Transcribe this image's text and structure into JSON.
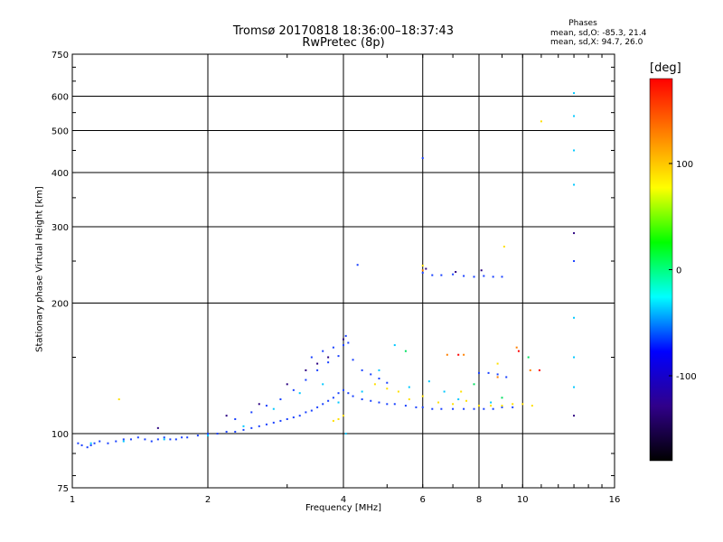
{
  "chart_data": {
    "type": "scatter",
    "title": "Tromsø 20170818 18:36:00–18:37:43",
    "subtitle": "RwPretec (8p)",
    "xlabel": "Frequency [MHz]",
    "ylabel": "Stationary phase Virtual Height [km]",
    "x_scale": "log",
    "y_scale": "log",
    "xlim": [
      1,
      16
    ],
    "ylim": [
      75,
      750
    ],
    "x_ticks": [
      1,
      2,
      4,
      6,
      8,
      10,
      16
    ],
    "y_ticks": [
      75,
      100,
      200,
      300,
      400,
      500,
      600,
      750
    ],
    "grid": true,
    "phase_stats": {
      "title": "Phases",
      "o_line": "mean, sd,O: -85.3, 21.4",
      "x_line": "mean, sd,X:  94.7, 26.0"
    },
    "colorbar": {
      "label": "[deg]",
      "range": [
        -180,
        180
      ],
      "ticks": [
        100,
        0,
        -100
      ],
      "colors": [
        "#ff0000",
        "#ff8000",
        "#ffff00",
        "#00ff00",
        "#00ffff",
        "#0000ff",
        "#30008a",
        "#000000"
      ]
    },
    "series": [
      {
        "color": "#1840ff",
        "points": [
          [
            1.03,
            95
          ],
          [
            1.05,
            94
          ],
          [
            1.08,
            93
          ],
          [
            1.1,
            94
          ],
          [
            1.12,
            95
          ],
          [
            1.15,
            96
          ],
          [
            1.2,
            95
          ],
          [
            1.25,
            96
          ],
          [
            1.3,
            97
          ],
          [
            1.35,
            97
          ],
          [
            1.4,
            98
          ],
          [
            1.45,
            97
          ],
          [
            1.5,
            96
          ],
          [
            1.55,
            97
          ],
          [
            1.6,
            98
          ],
          [
            1.65,
            97
          ],
          [
            1.7,
            97
          ],
          [
            1.75,
            98
          ],
          [
            1.8,
            98
          ],
          [
            1.9,
            99
          ],
          [
            2.0,
            100
          ],
          [
            2.1,
            100
          ],
          [
            2.2,
            101
          ],
          [
            2.3,
            101
          ],
          [
            2.4,
            102
          ],
          [
            2.5,
            103
          ],
          [
            2.6,
            104
          ],
          [
            2.7,
            105
          ],
          [
            2.8,
            106
          ],
          [
            2.9,
            107
          ],
          [
            3.0,
            108
          ],
          [
            3.1,
            109
          ],
          [
            3.2,
            110
          ],
          [
            3.3,
            112
          ],
          [
            3.4,
            113
          ],
          [
            3.5,
            115
          ],
          [
            3.6,
            117
          ],
          [
            3.7,
            119
          ],
          [
            3.8,
            121
          ],
          [
            3.9,
            124
          ],
          [
            4.0,
            126
          ],
          [
            4.1,
            124
          ],
          [
            4.2,
            122
          ],
          [
            4.4,
            120
          ],
          [
            4.6,
            119
          ],
          [
            4.8,
            118
          ],
          [
            5.0,
            117
          ],
          [
            5.2,
            117
          ],
          [
            5.5,
            116
          ],
          [
            5.8,
            115
          ],
          [
            6.0,
            115
          ],
          [
            6.3,
            114
          ],
          [
            6.6,
            114
          ],
          [
            7.0,
            114
          ],
          [
            7.4,
            114
          ],
          [
            7.8,
            114
          ],
          [
            8.2,
            114
          ],
          [
            8.6,
            114
          ],
          [
            9.0,
            115
          ],
          [
            9.5,
            115
          ],
          [
            2.3,
            108
          ],
          [
            2.5,
            112
          ],
          [
            2.7,
            116
          ],
          [
            2.9,
            120
          ],
          [
            3.1,
            126
          ],
          [
            3.3,
            133
          ],
          [
            3.5,
            140
          ],
          [
            3.7,
            146
          ],
          [
            3.9,
            151
          ],
          [
            4.0,
            160
          ],
          [
            4.05,
            168
          ],
          [
            4.1,
            162
          ],
          [
            4.2,
            148
          ],
          [
            4.4,
            140
          ],
          [
            4.6,
            137
          ],
          [
            4.8,
            134
          ],
          [
            5.0,
            131
          ],
          [
            6.0,
            235
          ],
          [
            6.3,
            232
          ],
          [
            6.6,
            232
          ],
          [
            7.0,
            233
          ],
          [
            7.4,
            231
          ],
          [
            7.8,
            230
          ],
          [
            8.2,
            231
          ],
          [
            8.6,
            230
          ],
          [
            9.0,
            230
          ],
          [
            8.0,
            138
          ],
          [
            8.4,
            138
          ],
          [
            8.8,
            137
          ],
          [
            9.2,
            135
          ],
          [
            3.4,
            150
          ],
          [
            3.6,
            155
          ],
          [
            3.8,
            158
          ],
          [
            4.3,
            245
          ],
          [
            6.0,
            432
          ],
          [
            13.0,
            250
          ]
        ]
      },
      {
        "color": "#00c8ff",
        "points": [
          [
            1.1,
            95
          ],
          [
            1.3,
            96
          ],
          [
            1.6,
            97
          ],
          [
            2.0,
            99
          ],
          [
            2.4,
            104
          ],
          [
            2.8,
            114
          ],
          [
            3.2,
            124
          ],
          [
            3.6,
            130
          ],
          [
            3.9,
            118
          ],
          [
            4.05,
            100
          ],
          [
            4.4,
            125
          ],
          [
            4.8,
            140
          ],
          [
            5.2,
            160
          ],
          [
            5.6,
            128
          ],
          [
            6.2,
            132
          ],
          [
            6.7,
            125
          ],
          [
            7.2,
            120
          ],
          [
            8.5,
            118
          ],
          [
            13.0,
            185
          ],
          [
            13.0,
            610
          ],
          [
            13.0,
            540
          ],
          [
            13.0,
            450
          ],
          [
            13.0,
            375
          ],
          [
            13.0,
            150
          ],
          [
            13.0,
            128
          ]
        ]
      },
      {
        "color": "#ffe000",
        "points": [
          [
            1.27,
            120
          ],
          [
            3.8,
            107
          ],
          [
            3.9,
            108
          ],
          [
            4.0,
            110
          ],
          [
            4.7,
            130
          ],
          [
            5.0,
            127
          ],
          [
            5.3,
            125
          ],
          [
            5.6,
            120
          ],
          [
            6.0,
            122
          ],
          [
            6.5,
            118
          ],
          [
            7.0,
            117
          ],
          [
            7.5,
            119
          ],
          [
            8.0,
            116
          ],
          [
            8.5,
            116
          ],
          [
            9.0,
            116
          ],
          [
            9.5,
            117
          ],
          [
            10.0,
            117
          ],
          [
            10.5,
            116
          ],
          [
            11.0,
            525
          ],
          [
            9.1,
            270
          ],
          [
            6.0,
            244
          ],
          [
            7.3,
            125
          ],
          [
            8.8,
            145
          ]
        ]
      },
      {
        "color": "#ff8000",
        "points": [
          [
            6.0,
            238
          ],
          [
            6.8,
            152
          ],
          [
            7.4,
            152
          ],
          [
            8.8,
            135
          ],
          [
            10.4,
            140
          ],
          [
            9.7,
            158
          ]
        ]
      },
      {
        "color": "#ff0000",
        "points": [
          [
            7.2,
            152
          ],
          [
            9.8,
            155
          ],
          [
            10.9,
            140
          ]
        ]
      },
      {
        "color": "#00e060",
        "points": [
          [
            5.5,
            155
          ],
          [
            7.8,
            130
          ],
          [
            9.0,
            121
          ],
          [
            10.3,
            150
          ]
        ]
      },
      {
        "color": "#2a0080",
        "points": [
          [
            2.2,
            110
          ],
          [
            3.0,
            130
          ],
          [
            3.3,
            140
          ],
          [
            3.5,
            145
          ],
          [
            3.7,
            150
          ],
          [
            4.0,
            165
          ],
          [
            6.1,
            240
          ],
          [
            7.1,
            236
          ],
          [
            8.1,
            238
          ],
          [
            13.0,
            290
          ],
          [
            13.0,
            110
          ],
          [
            2.6,
            117
          ],
          [
            1.55,
            103
          ]
        ]
      }
    ]
  }
}
